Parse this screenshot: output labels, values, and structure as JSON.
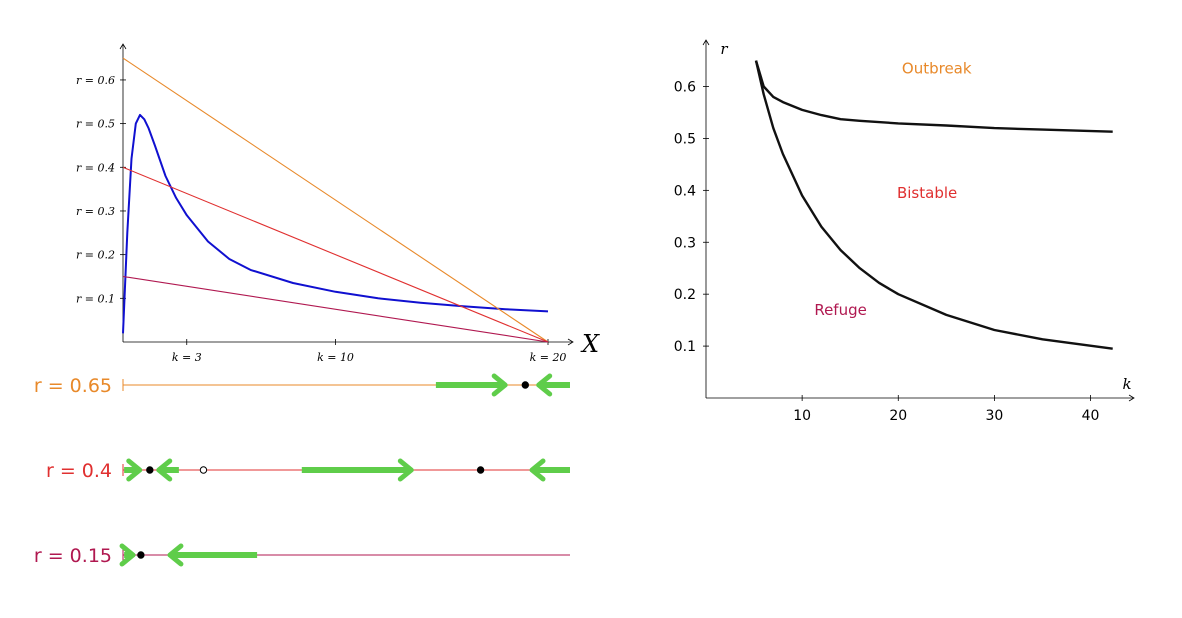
{
  "colors": {
    "orange": "#e8892a",
    "red": "#e03030",
    "maroon": "#b01850",
    "blue": "#1010d0",
    "green": "#5fcd4a",
    "black": "#111111"
  },
  "chart_data": [
    {
      "id": "growth-vs-predation",
      "type": "line",
      "xlabel": "X",
      "ylabel": "",
      "x_ticks": [
        "k = 3",
        "k = 10",
        "k = 20"
      ],
      "x_tick_values": [
        3,
        10,
        20
      ],
      "y_ticks": [
        "r = 0.1",
        "r = 0.2",
        "r = 0.3",
        "r = 0.4",
        "r = 0.5",
        "r = 0.6"
      ],
      "y_tick_values": [
        0.1,
        0.2,
        0.3,
        0.4,
        0.5,
        0.6
      ],
      "xlim": [
        0,
        20
      ],
      "ylim": [
        0,
        0.68
      ],
      "series": [
        {
          "color_key": "blue",
          "kind": "curve",
          "x": [
            0,
            0.2,
            0.4,
            0.6,
            0.8,
            1.0,
            1.2,
            1.5,
            2.0,
            2.5,
            3.0,
            4.0,
            5.0,
            6.0,
            8.0,
            10.0,
            12.0,
            14.0,
            16.0,
            18.0,
            20.0
          ],
          "y": [
            0.02,
            0.25,
            0.42,
            0.5,
            0.52,
            0.51,
            0.49,
            0.45,
            0.38,
            0.33,
            0.29,
            0.23,
            0.19,
            0.165,
            0.135,
            0.115,
            0.1,
            0.09,
            0.082,
            0.075,
            0.07
          ]
        },
        {
          "color_key": "orange",
          "kind": "line",
          "x": [
            0,
            20
          ],
          "y": [
            0.65,
            0
          ]
        },
        {
          "color_key": "red",
          "kind": "line",
          "x": [
            0,
            20
          ],
          "y": [
            0.4,
            0
          ]
        },
        {
          "color_key": "maroon",
          "kind": "line",
          "x": [
            0,
            20
          ],
          "y": [
            0.15,
            0
          ]
        }
      ]
    },
    {
      "id": "phase-lines",
      "type": "phase-line",
      "xlim": [
        0,
        20
      ],
      "rows": [
        {
          "label": "r = 0.65",
          "color_key": "orange",
          "fixed_points": [
            {
              "x": 18.0,
              "stable": true
            }
          ],
          "arrows": [
            {
              "from": 14.0,
              "to": 17.1
            },
            {
              "from": 20.0,
              "to": 18.6
            }
          ]
        },
        {
          "label": "r = 0.4",
          "color_key": "red",
          "fixed_points": [
            {
              "x": 1.2,
              "stable": true
            },
            {
              "x": 3.6,
              "stable": false
            },
            {
              "x": 16.0,
              "stable": true
            }
          ],
          "arrows": [
            {
              "from": 0.05,
              "to": 0.75
            },
            {
              "from": 2.5,
              "to": 1.6
            },
            {
              "from": 8.0,
              "to": 12.9
            },
            {
              "from": 20.0,
              "to": 18.3
            }
          ]
        },
        {
          "label": "r = 0.15",
          "color_key": "maroon",
          "fixed_points": [
            {
              "x": 0.8,
              "stable": true
            }
          ],
          "arrows": [
            {
              "from": 0.05,
              "to": 0.45
            },
            {
              "from": 6.0,
              "to": 2.1
            }
          ]
        }
      ]
    },
    {
      "id": "bifurcation",
      "type": "line",
      "xlabel": "k",
      "ylabel": "r",
      "x_ticks": [
        "10",
        "20",
        "30",
        "40"
      ],
      "x_tick_values": [
        10,
        20,
        30,
        40
      ],
      "y_ticks": [
        "0.1",
        "0.2",
        "0.3",
        "0.4",
        "0.5",
        "0.6"
      ],
      "y_tick_values": [
        0.1,
        0.2,
        0.3,
        0.4,
        0.5,
        0.6
      ],
      "xlim": [
        0,
        44
      ],
      "ylim": [
        0,
        0.68
      ],
      "series": [
        {
          "color_key": "black",
          "kind": "curve",
          "x": [
            5.2,
            6,
            7,
            8,
            10,
            12,
            14,
            16,
            20,
            25,
            30,
            35,
            42.3
          ],
          "y": [
            0.65,
            0.6,
            0.58,
            0.57,
            0.555,
            0.545,
            0.537,
            0.534,
            0.529,
            0.525,
            0.52,
            0.517,
            0.513
          ]
        },
        {
          "color_key": "black",
          "kind": "curve",
          "x": [
            5.2,
            6,
            7,
            8,
            10,
            12,
            14,
            16,
            18,
            20,
            25,
            30,
            35,
            42.3
          ],
          "y": [
            0.65,
            0.585,
            0.52,
            0.47,
            0.39,
            0.33,
            0.285,
            0.25,
            0.222,
            0.2,
            0.16,
            0.131,
            0.113,
            0.095
          ]
        }
      ],
      "annotations": [
        {
          "text": "Outbreak",
          "x": 24,
          "y": 0.625,
          "color_key": "orange"
        },
        {
          "text": "Bistable",
          "x": 23,
          "y": 0.385,
          "color_key": "red"
        },
        {
          "text": "Refuge",
          "x": 14,
          "y": 0.16,
          "color_key": "maroon"
        }
      ]
    }
  ]
}
